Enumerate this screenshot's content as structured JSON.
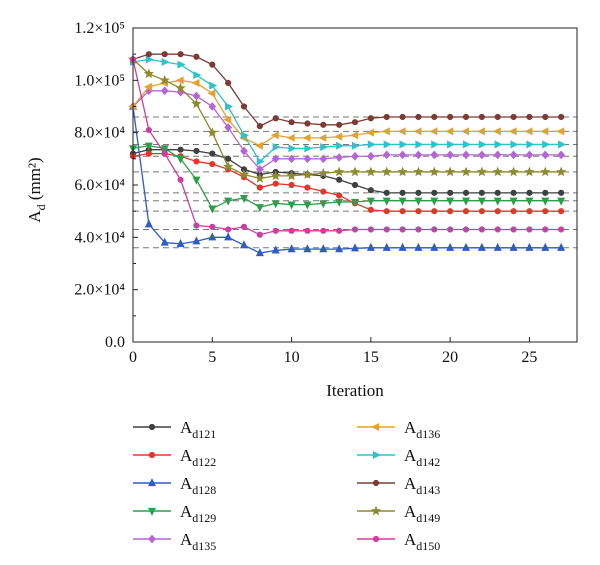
{
  "chart_data": {
    "type": "line",
    "xlabel": "Iteration",
    "ylabel": "A",
    "ylabel_sub": "d",
    "ylabel_unit": " (mm²)",
    "xlim": [
      0,
      28
    ],
    "ylim": [
      0,
      120000
    ],
    "x_ticks": [
      0,
      5,
      10,
      15,
      20,
      25
    ],
    "x_tick_labels": [
      "0",
      "5",
      "10",
      "15",
      "20",
      "25"
    ],
    "y_ticks": [
      0,
      20000,
      40000,
      60000,
      80000,
      100000,
      120000
    ],
    "y_tick_labels": [
      "0.0",
      "2.0×10⁴",
      "4.0×10⁴",
      "6.0×10⁴",
      "8.0×10⁴",
      "1.0×10⁵",
      "1.2×10⁵"
    ],
    "grid": false,
    "legend_position": "bottom",
    "reference_lines": [
      86000,
      80500,
      75500,
      71000,
      65000,
      57000,
      54000,
      50000,
      43000,
      36000
    ],
    "x": [
      0,
      1,
      2,
      3,
      4,
      5,
      6,
      7,
      8,
      9,
      10,
      11,
      12,
      13,
      14,
      15,
      16,
      17,
      18,
      19,
      20,
      21,
      22,
      23,
      24,
      25,
      26,
      27
    ],
    "series": [
      {
        "name": "A",
        "sub": "d121",
        "color": "#404040",
        "marker": "circle",
        "values": [
          72000,
          73500,
          73500,
          73500,
          73000,
          72000,
          70000,
          66000,
          64000,
          65000,
          64500,
          64000,
          63500,
          62000,
          60000,
          58000,
          57000,
          57000,
          57000,
          57000,
          57000,
          57000,
          57000,
          57000,
          57000,
          57000,
          57000,
          57000
        ]
      },
      {
        "name": "A",
        "sub": "d122",
        "color": "#e8352c",
        "marker": "circle",
        "values": [
          71000,
          72000,
          72000,
          71000,
          69000,
          68000,
          66000,
          63000,
          59000,
          60500,
          60000,
          59000,
          57500,
          56000,
          53000,
          50500,
          50000,
          50000,
          50000,
          50000,
          50000,
          50000,
          50000,
          50000,
          50000,
          50000,
          50000,
          50000
        ]
      },
      {
        "name": "A",
        "sub": "d128",
        "color": "#2f5cc4",
        "marker": "triangle",
        "values": [
          90000,
          45000,
          38000,
          37500,
          38500,
          40000,
          40000,
          37000,
          34000,
          35000,
          35500,
          35500,
          35500,
          35500,
          35800,
          36000,
          36000,
          36000,
          36000,
          36000,
          36000,
          36000,
          36000,
          36000,
          36000,
          36000,
          36000,
          36000
        ]
      },
      {
        "name": "A",
        "sub": "d129",
        "color": "#2f9e4a",
        "marker": "triangle-down",
        "values": [
          74000,
          75000,
          74000,
          70000,
          62000,
          51000,
          54000,
          55000,
          51500,
          53000,
          52500,
          52500,
          53000,
          53500,
          53500,
          54000,
          54000,
          54000,
          54000,
          54000,
          54000,
          54000,
          54000,
          54000,
          54000,
          54000,
          54000,
          54000
        ]
      },
      {
        "name": "A",
        "sub": "d135",
        "color": "#b765d4",
        "marker": "diamond",
        "values": [
          90000,
          96000,
          96000,
          95500,
          94000,
          90000,
          82000,
          73000,
          66000,
          70000,
          70000,
          70000,
          70000,
          70500,
          71000,
          71000,
          71500,
          71500,
          71500,
          71500,
          71500,
          71500,
          71500,
          71500,
          71500,
          71500,
          71500,
          71500
        ]
      },
      {
        "name": "A",
        "sub": "d136",
        "color": "#e6a22f",
        "marker": "triangle-left",
        "values": [
          90000,
          97500,
          99000,
          100000,
          99000,
          95000,
          85000,
          78000,
          75000,
          79000,
          78000,
          78000,
          78000,
          78500,
          79000,
          80000,
          80500,
          80500,
          80500,
          80500,
          80500,
          80500,
          80500,
          80500,
          80500,
          80500,
          80500,
          80500
        ]
      },
      {
        "name": "A",
        "sub": "d142",
        "color": "#2fc3c9",
        "marker": "triangle-right",
        "values": [
          107000,
          108000,
          107000,
          106000,
          102000,
          98000,
          90000,
          79000,
          69000,
          74500,
          74000,
          74000,
          74500,
          75000,
          75000,
          75500,
          75500,
          75500,
          75500,
          75500,
          75500,
          75500,
          75500,
          75500,
          75500,
          75500,
          75500,
          75500
        ]
      },
      {
        "name": "A",
        "sub": "d143",
        "color": "#7d3b34",
        "marker": "circle",
        "values": [
          108000,
          110000,
          110000,
          110000,
          109000,
          106000,
          99000,
          90000,
          82500,
          85500,
          84000,
          83500,
          83000,
          83000,
          84000,
          85500,
          86000,
          86000,
          86000,
          86000,
          86000,
          86000,
          86000,
          86000,
          86000,
          86000,
          86000,
          86000
        ]
      },
      {
        "name": "A",
        "sub": "d149",
        "color": "#8f8a2e",
        "marker": "star",
        "values": [
          108000,
          102500,
          100000,
          97000,
          91000,
          80000,
          67000,
          64000,
          62500,
          63500,
          63500,
          64000,
          64500,
          65000,
          65000,
          65000,
          65000,
          65000,
          65000,
          65000,
          65000,
          65000,
          65000,
          65000,
          65000,
          65000,
          65000,
          65000
        ]
      },
      {
        "name": "A",
        "sub": "d150",
        "color": "#cc3f9f",
        "marker": "circle",
        "values": [
          108000,
          81000,
          72000,
          62000,
          44500,
          44000,
          43000,
          44000,
          41000,
          42500,
          42500,
          42500,
          42500,
          42500,
          43000,
          43000,
          43000,
          43000,
          43000,
          43000,
          43000,
          43000,
          43000,
          43000,
          43000,
          43000,
          43000,
          43000
        ]
      }
    ]
  }
}
